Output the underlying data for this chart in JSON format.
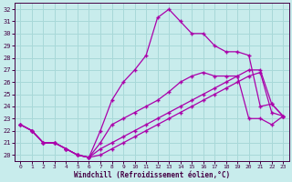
{
  "xlabel": "Windchill (Refroidissement éolien,°C)",
  "bg_color": "#c8ecec",
  "grid_color": "#a8d8d8",
  "line_color": "#aa00aa",
  "xlim": [
    -0.5,
    23.5
  ],
  "ylim": [
    19.5,
    32.5
  ],
  "yticks": [
    20,
    21,
    22,
    23,
    24,
    25,
    26,
    27,
    28,
    29,
    30,
    31,
    32
  ],
  "xticks": [
    0,
    1,
    2,
    3,
    4,
    5,
    6,
    7,
    8,
    9,
    10,
    11,
    12,
    13,
    14,
    15,
    16,
    17,
    18,
    19,
    20,
    21,
    22,
    23
  ],
  "line1_x": [
    0,
    1,
    2,
    3,
    4,
    5,
    6,
    7,
    8,
    9,
    10,
    11,
    12,
    13,
    14,
    15,
    16,
    17,
    18,
    19,
    20,
    21,
    22,
    23
  ],
  "line1_y": [
    22.5,
    22.0,
    21.0,
    21.0,
    20.5,
    20.0,
    19.8,
    22.0,
    24.5,
    26.0,
    27.0,
    28.2,
    31.3,
    32.0,
    31.0,
    30.0,
    30.0,
    29.0,
    28.5,
    28.5,
    28.2,
    24.0,
    24.2,
    23.2
  ],
  "line2_x": [
    0,
    1,
    2,
    3,
    4,
    5,
    6,
    7,
    8,
    9,
    10,
    11,
    12,
    13,
    14,
    15,
    16,
    17,
    18,
    19,
    20,
    21,
    22,
    23
  ],
  "line2_y": [
    22.5,
    22.0,
    21.0,
    21.0,
    20.5,
    20.0,
    19.8,
    21.0,
    22.5,
    23.0,
    23.5,
    24.0,
    24.5,
    25.2,
    26.0,
    26.5,
    26.8,
    26.5,
    26.5,
    26.5,
    23.0,
    23.0,
    22.5,
    23.2
  ],
  "line3_x": [
    0,
    1,
    2,
    3,
    4,
    5,
    6,
    7,
    8,
    9,
    10,
    11,
    12,
    13,
    14,
    15,
    16,
    17,
    18,
    19,
    20,
    21,
    22,
    23
  ],
  "line3_y": [
    22.5,
    22.0,
    21.0,
    21.0,
    20.5,
    20.0,
    19.8,
    20.5,
    21.0,
    21.5,
    22.0,
    22.5,
    23.0,
    23.5,
    24.0,
    24.5,
    25.0,
    25.5,
    26.0,
    26.5,
    27.0,
    27.0,
    24.2,
    23.2
  ],
  "line4_x": [
    0,
    1,
    2,
    3,
    4,
    5,
    6,
    7,
    8,
    9,
    10,
    11,
    12,
    13,
    14,
    15,
    16,
    17,
    18,
    19,
    20,
    21,
    22,
    23
  ],
  "line4_y": [
    22.5,
    22.0,
    21.0,
    21.0,
    20.5,
    20.0,
    19.8,
    20.0,
    20.5,
    21.0,
    21.5,
    22.0,
    22.5,
    23.0,
    23.5,
    24.0,
    24.5,
    25.0,
    25.5,
    26.0,
    26.5,
    26.8,
    23.5,
    23.2
  ]
}
